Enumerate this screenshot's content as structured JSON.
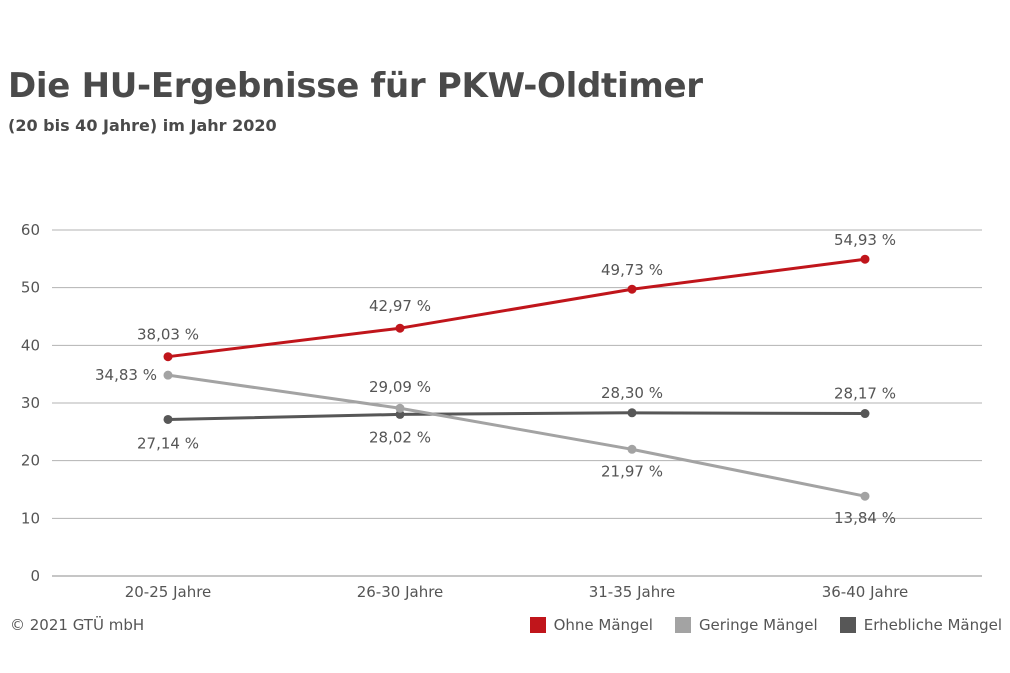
{
  "title": "Die HU-Ergebnisse für PKW-Oldtimer",
  "subtitle": "(20 bis 40 Jahre) im Jahr 2020",
  "copyright": "© 2021 GTÜ mbH",
  "colors": {
    "ohne": "#c0151b",
    "geringe": "#a3a3a3",
    "erhebliche": "#575757",
    "grid": "#b3b3b3"
  },
  "chart_data": {
    "type": "line",
    "categories": [
      "20-25 Jahre",
      "26-30 Jahre",
      "31-35 Jahre",
      "36-40 Jahre"
    ],
    "ylim": [
      0,
      60
    ],
    "yticks": [
      "0",
      "10",
      "20",
      "30",
      "40",
      "50",
      "60"
    ],
    "grid": true,
    "legend_position": "bottom-right",
    "series": [
      {
        "name": "Ohne Mängel",
        "values": [
          38.03,
          42.97,
          49.73,
          54.93
        ],
        "labels": [
          "38,03 %",
          "42,97 %",
          "49,73 %",
          "54,93 %"
        ]
      },
      {
        "name": "Geringe Mängel",
        "values": [
          34.83,
          29.09,
          21.97,
          13.84
        ],
        "labels": [
          "34,83 %",
          "29,09 %",
          "21,97 %",
          "13,84 %"
        ]
      },
      {
        "name": "Erhebliche Mängel",
        "values": [
          27.14,
          28.02,
          28.3,
          28.17
        ],
        "labels": [
          "27,14 %",
          "28,02 %",
          "28,30 %",
          "28,17 %"
        ]
      }
    ]
  }
}
